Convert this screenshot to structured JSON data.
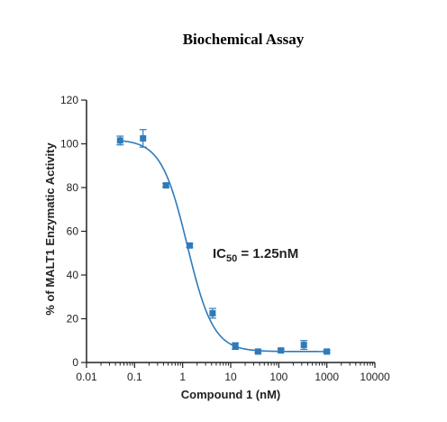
{
  "chart_data": {
    "type": "scatter",
    "title": "Biochemical Assay",
    "xlabel": "Compound 1 (nM)",
    "ylabel": "% of MALT1 Enzymatic Activity",
    "x_scale": "log",
    "xlim": [
      0.01,
      10000
    ],
    "ylim": [
      0,
      120
    ],
    "x_ticks": [
      "0.01",
      "0.1",
      "1",
      "10",
      "100",
      "1000",
      "10000"
    ],
    "y_ticks": [
      "0",
      "20",
      "40",
      "60",
      "80",
      "100",
      "120"
    ],
    "grid": false,
    "legend": "none",
    "color": "#2f7ab9",
    "points": [
      {
        "x": 0.05,
        "y": 101.5,
        "err": 2.0
      },
      {
        "x": 0.15,
        "y": 102.5,
        "err": 4.0
      },
      {
        "x": 0.45,
        "y": 81.0,
        "err": 0.8
      },
      {
        "x": 1.4,
        "y": 53.5,
        "err": 0.8
      },
      {
        "x": 4.2,
        "y": 22.5,
        "err": 2.2
      },
      {
        "x": 12.5,
        "y": 7.5,
        "err": 1.5
      },
      {
        "x": 37,
        "y": 5.0,
        "err": 0.6
      },
      {
        "x": 111,
        "y": 5.5,
        "err": 0.6
      },
      {
        "x": 333,
        "y": 8.0,
        "err": 2.0
      },
      {
        "x": 1000,
        "y": 5.0,
        "err": 0.6
      }
    ],
    "fit": {
      "model": "4PL",
      "top": 102,
      "bottom": 5,
      "ic50": 1.25,
      "hill": 1.6
    },
    "annotation": {
      "prefix": "IC",
      "sub": "50",
      "suffix": " = 1.25nM"
    }
  }
}
